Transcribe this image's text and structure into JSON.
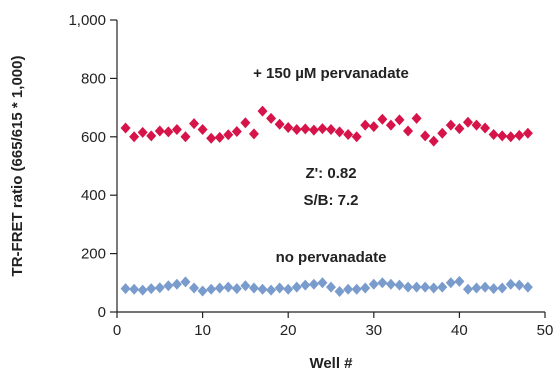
{
  "chart_data": {
    "type": "scatter",
    "xlabel": "Well #",
    "ylabel": "TR-FRET ratio (665/615 * 1,000)",
    "xlim": [
      0,
      50
    ],
    "ylim": [
      0,
      1000
    ],
    "x_ticks": [
      0,
      10,
      20,
      30,
      40,
      50
    ],
    "y_ticks": [
      0,
      200,
      400,
      600,
      800,
      1000
    ],
    "x_tick_labels": [
      "0",
      "10",
      "20",
      "30",
      "40",
      "50"
    ],
    "y_tick_labels": [
      "0",
      "200",
      "400",
      "600",
      "800",
      "1,000"
    ],
    "grid": false,
    "marker": "diamond",
    "annotations": {
      "treated_label": "+ 150 µM pervanadate",
      "zprime": "Z': 0.82",
      "sb": "S/B: 7.2",
      "control_label": "no pervanadate"
    },
    "series": [
      {
        "color": "#d6144a",
        "x": [
          1,
          2,
          3,
          4,
          5,
          6,
          7,
          8,
          9,
          10,
          11,
          12,
          13,
          14,
          15,
          16,
          17,
          18,
          19,
          20,
          21,
          22,
          23,
          24,
          25,
          26,
          27,
          28,
          29,
          30,
          31,
          32,
          33,
          34,
          35,
          36,
          37,
          38,
          39,
          40,
          41,
          42,
          43,
          44,
          45,
          46,
          47,
          48
        ],
        "y": [
          630,
          600,
          615,
          603,
          620,
          617,
          625,
          600,
          645,
          625,
          595,
          598,
          607,
          618,
          648,
          610,
          688,
          663,
          643,
          632,
          625,
          627,
          623,
          628,
          625,
          617,
          608,
          600,
          640,
          635,
          660,
          640,
          658,
          620,
          663,
          603,
          585,
          612,
          640,
          628,
          650,
          640,
          630,
          608,
          603,
          600,
          605,
          612
        ]
      },
      {
        "color": "#7a9ccd",
        "x": [
          1,
          2,
          3,
          4,
          5,
          6,
          7,
          8,
          9,
          10,
          11,
          12,
          13,
          14,
          15,
          16,
          17,
          18,
          19,
          20,
          21,
          22,
          23,
          24,
          25,
          26,
          27,
          28,
          29,
          30,
          31,
          32,
          33,
          34,
          35,
          36,
          37,
          38,
          39,
          40,
          41,
          42,
          43,
          44,
          45,
          46,
          47,
          48
        ],
        "y": [
          80,
          78,
          75,
          80,
          83,
          90,
          95,
          103,
          82,
          72,
          78,
          82,
          85,
          80,
          90,
          82,
          78,
          75,
          82,
          78,
          85,
          92,
          95,
          100,
          85,
          70,
          78,
          78,
          82,
          95,
          100,
          95,
          92,
          85,
          85,
          85,
          82,
          85,
          100,
          105,
          78,
          82,
          85,
          80,
          82,
          95,
          92,
          85
        ]
      }
    ]
  }
}
